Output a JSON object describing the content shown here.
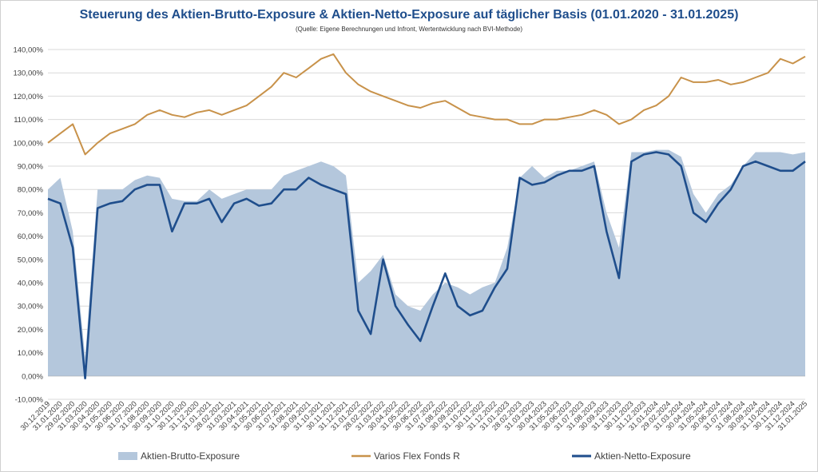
{
  "chart_data": {
    "type": "area",
    "title": "Steuerung des Aktien-Brutto-Exposure & Aktien-Netto-Exposure auf täglicher Basis (01.01.2020 - 31.01.2025)",
    "subtitle": "(Quelle: Eigene Berechnungen und Infront, Wertentwicklung nach BVI-Methode)",
    "ylim": [
      -10,
      140
    ],
    "yticks": [
      "-10,00%",
      "0,00%",
      "10,00%",
      "20,00%",
      "30,00%",
      "40,00%",
      "50,00%",
      "60,00%",
      "70,00%",
      "80,00%",
      "90,00%",
      "100,00%",
      "110,00%",
      "120,00%",
      "130,00%",
      "140,00%"
    ],
    "grid": true,
    "legend_position": "bottom",
    "x": [
      "30.12.2019",
      "31.01.2020",
      "29.02.2020",
      "31.03.2020",
      "30.04.2020",
      "31.05.2020",
      "30.06.2020",
      "31.07.2020",
      "31.08.2020",
      "30.09.2020",
      "31.10.2020",
      "30.11.2020",
      "31.12.2020",
      "31.01.2021",
      "28.02.2021",
      "31.03.2021",
      "30.04.2021",
      "31.05.2021",
      "30.06.2021",
      "31.07.2021",
      "31.08.2021",
      "30.09.2021",
      "31.10.2021",
      "30.11.2021",
      "31.12.2021",
      "31.01.2022",
      "28.02.2022",
      "31.03.2022",
      "30.04.2022",
      "31.05.2022",
      "30.06.2022",
      "31.07.2022",
      "31.08.2022",
      "30.09.2022",
      "31.10.2022",
      "30.11.2022",
      "31.12.2022",
      "31.01.2023",
      "28.02.2023",
      "31.03.2023",
      "30.04.2023",
      "31.05.2023",
      "30.06.2023",
      "31.07.2023",
      "31.08.2023",
      "30.09.2023",
      "31.10.2023",
      "30.11.2023",
      "31.12.2023",
      "31.01.2024",
      "29.02.2024",
      "31.03.2024",
      "30.04.2024",
      "31.05.2024",
      "30.06.2024",
      "31.07.2024",
      "31.08.2024",
      "30.09.2024",
      "31.10.2024",
      "30.11.2024",
      "31.12.2024",
      "31.01.2025"
    ],
    "series": [
      {
        "name": "Aktien-Brutto-Exposure",
        "type": "area",
        "color": "#b4c7dc",
        "values": [
          80,
          85,
          62,
          8,
          80,
          80,
          80,
          84,
          86,
          85,
          76,
          75,
          75,
          80,
          76,
          78,
          80,
          80,
          80,
          86,
          88,
          90,
          92,
          90,
          86,
          40,
          45,
          52,
          35,
          30,
          28,
          35,
          40,
          38,
          35,
          38,
          40,
          55,
          85,
          90,
          85,
          88,
          88,
          90,
          92,
          70,
          55,
          96,
          96,
          97,
          97,
          94,
          78,
          70,
          78,
          82,
          90,
          96,
          96,
          96,
          95,
          96
        ]
      },
      {
        "name": "Varios Flex Fonds R",
        "type": "line",
        "color": "#c8924a",
        "values": [
          100,
          104,
          108,
          95,
          100,
          104,
          106,
          108,
          112,
          114,
          112,
          111,
          113,
          114,
          112,
          114,
          116,
          120,
          124,
          130,
          128,
          132,
          136,
          138,
          130,
          125,
          122,
          120,
          118,
          116,
          115,
          117,
          118,
          115,
          112,
          111,
          110,
          110,
          108,
          108,
          110,
          110,
          111,
          112,
          114,
          112,
          108,
          110,
          114,
          116,
          120,
          128,
          126,
          126,
          127,
          125,
          126,
          128,
          130,
          136,
          134,
          137
        ]
      },
      {
        "name": "Aktien-Netto-Exposure",
        "type": "line",
        "color": "#1f4e8c",
        "values": [
          76,
          74,
          55,
          -1,
          72,
          74,
          75,
          80,
          82,
          82,
          62,
          74,
          74,
          76,
          66,
          74,
          76,
          73,
          74,
          80,
          80,
          85,
          82,
          80,
          78,
          28,
          18,
          50,
          30,
          22,
          15,
          30,
          44,
          30,
          26,
          28,
          38,
          46,
          85,
          82,
          83,
          86,
          88,
          88,
          90,
          62,
          42,
          92,
          95,
          96,
          95,
          90,
          70,
          66,
          74,
          80,
          90,
          92,
          90,
          88,
          88,
          92
        ]
      }
    ]
  }
}
